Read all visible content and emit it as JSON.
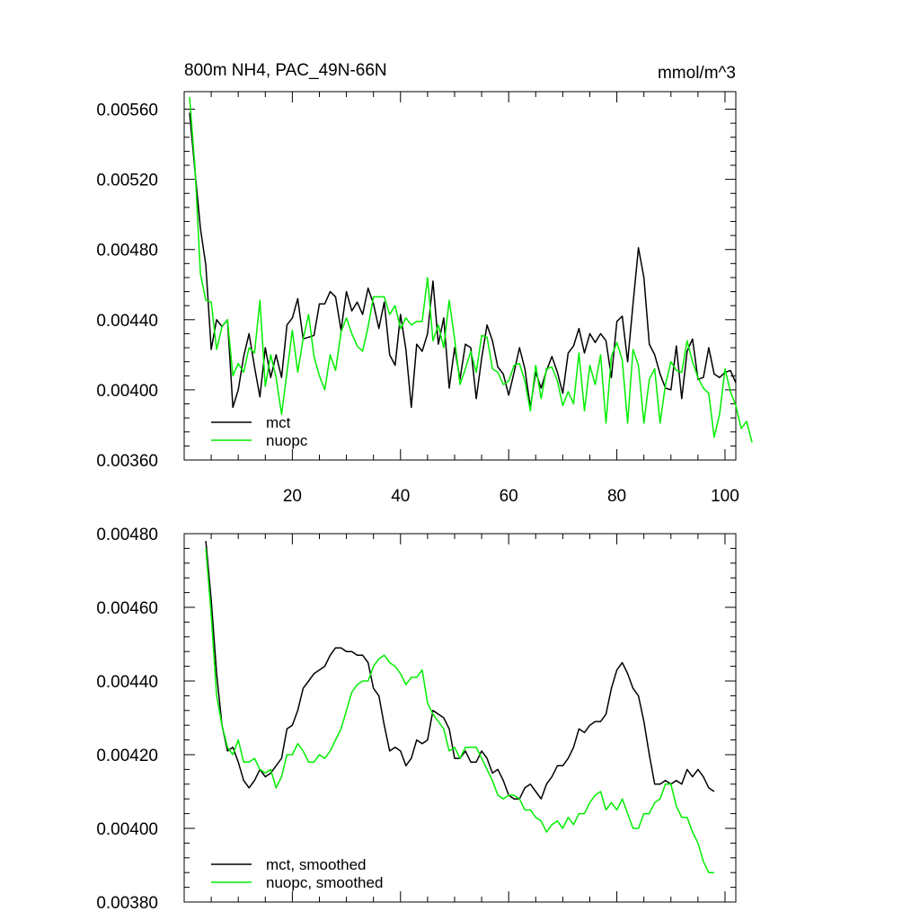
{
  "colors": {
    "mct": "#000000",
    "nuopc": "#00ee00"
  },
  "chart_data": [
    {
      "type": "line",
      "title": "800m NH4, PAC_49N-66N",
      "units": "mmol/m^3",
      "xlim": [
        0,
        102
      ],
      "ylim": [
        0.0036,
        0.0057
      ],
      "x_ticks": [
        20,
        40,
        60,
        80,
        100
      ],
      "x_tick_labels": [
        "20",
        "40",
        "60",
        "80",
        "100"
      ],
      "y_ticks": [
        0.0036,
        0.004,
        0.0044,
        0.0048,
        0.0052,
        0.0056
      ],
      "y_tick_labels": [
        "0.00360",
        "0.00400",
        "0.00440",
        "0.00480",
        "0.00520",
        "0.00560"
      ],
      "legend": [
        "mct",
        "nuopc"
      ],
      "series": [
        {
          "name": "mct",
          "x_start": 1,
          "values": [
            0.00558,
            0.00525,
            0.00492,
            0.00471,
            0.00423,
            0.0044,
            0.00436,
            0.0044,
            0.0039,
            0.004,
            0.00419,
            0.00432,
            0.00413,
            0.00396,
            0.00424,
            0.00407,
            0.0042,
            0.00407,
            0.00437,
            0.00441,
            0.00452,
            0.00429,
            0.0043,
            0.00431,
            0.00449,
            0.00449,
            0.00456,
            0.00453,
            0.00434,
            0.00456,
            0.00445,
            0.0045,
            0.00443,
            0.00458,
            0.00449,
            0.00435,
            0.0045,
            0.0042,
            0.00414,
            0.00443,
            0.00423,
            0.0039,
            0.00426,
            0.00422,
            0.00432,
            0.00462,
            0.00426,
            0.00441,
            0.00401,
            0.00424,
            0.00406,
            0.00426,
            0.00424,
            0.00395,
            0.00418,
            0.00437,
            0.00428,
            0.00413,
            0.00409,
            0.00397,
            0.0041,
            0.00424,
            0.00412,
            0.0039,
            0.0041,
            0.00401,
            0.00411,
            0.00419,
            0.0041,
            0.00398,
            0.00421,
            0.00425,
            0.00435,
            0.00421,
            0.00432,
            0.00427,
            0.00432,
            0.00428,
            0.00407,
            0.00439,
            0.00442,
            0.00416,
            0.00449,
            0.00481,
            0.00464,
            0.00426,
            0.0042,
            0.00409,
            0.00401,
            0.004,
            0.00425,
            0.00395,
            0.00422,
            0.00429,
            0.00406,
            0.00407,
            0.00424,
            0.00409,
            0.00407,
            0.0041,
            0.00411,
            0.00404
          ]
        },
        {
          "name": "nuopc",
          "x_start": 1,
          "values": [
            0.00567,
            0.00527,
            0.00466,
            0.00451,
            0.0045,
            0.00423,
            0.00436,
            0.0044,
            0.00408,
            0.00415,
            0.0041,
            0.00424,
            0.00421,
            0.00451,
            0.00402,
            0.0042,
            0.00407,
            0.00386,
            0.0041,
            0.00434,
            0.0041,
            0.00429,
            0.00443,
            0.00419,
            0.00408,
            0.004,
            0.0042,
            0.00411,
            0.00433,
            0.00441,
            0.00432,
            0.00425,
            0.00422,
            0.00436,
            0.00453,
            0.00453,
            0.00453,
            0.00443,
            0.00448,
            0.00435,
            0.00441,
            0.00437,
            0.00439,
            0.00439,
            0.00464,
            0.00428,
            0.00437,
            0.00424,
            0.00451,
            0.00429,
            0.00403,
            0.00412,
            0.00422,
            0.0041,
            0.00431,
            0.0043,
            0.00412,
            0.0041,
            0.00403,
            0.00405,
            0.00414,
            0.00415,
            0.00405,
            0.00388,
            0.00414,
            0.00395,
            0.00412,
            0.00413,
            0.00405,
            0.00391,
            0.00399,
            0.00392,
            0.00421,
            0.00388,
            0.00414,
            0.00403,
            0.0042,
            0.00381,
            0.00419,
            0.00427,
            0.00417,
            0.00381,
            0.00423,
            0.00414,
            0.00381,
            0.00406,
            0.00412,
            0.00381,
            0.00403,
            0.00416,
            0.00411,
            0.0041,
            0.00428,
            0.00416,
            0.00407,
            0.00401,
            0.00398,
            0.00373,
            0.00386,
            0.00412,
            0.00399,
            0.00391,
            0.00378,
            0.00382,
            0.0037
          ]
        }
      ]
    },
    {
      "type": "line",
      "title": "",
      "units": "",
      "xlim": [
        0,
        102
      ],
      "ylim": [
        0.0038,
        0.0048
      ],
      "x_ticks": [
        20,
        40,
        60,
        80,
        100
      ],
      "x_tick_labels": [],
      "y_ticks": [
        0.0038,
        0.004,
        0.0042,
        0.0044,
        0.0046,
        0.0048
      ],
      "y_tick_labels": [
        "0.00380",
        "0.00400",
        "0.00420",
        "0.00440",
        "0.00460",
        "0.00480"
      ],
      "legend": [
        "mct, smoothed",
        "nuopc, smoothed"
      ],
      "series": [
        {
          "name": "mct, smoothed",
          "x_start": 4,
          "values": [
            0.00478,
            0.00462,
            0.00442,
            0.00428,
            0.00421,
            0.00422,
            0.00418,
            0.00413,
            0.00411,
            0.00413,
            0.00416,
            0.00414,
            0.00415,
            0.00417,
            0.00419,
            0.00427,
            0.00428,
            0.00432,
            0.00438,
            0.0044,
            0.00442,
            0.00443,
            0.00444,
            0.00447,
            0.00449,
            0.00449,
            0.00448,
            0.00448,
            0.00447,
            0.00447,
            0.00445,
            0.00438,
            0.00436,
            0.00428,
            0.00421,
            0.00422,
            0.00421,
            0.00417,
            0.00419,
            0.00424,
            0.00423,
            0.00424,
            0.00432,
            0.00431,
            0.0043,
            0.00427,
            0.00419,
            0.00419,
            0.00421,
            0.00418,
            0.00418,
            0.00421,
            0.00419,
            0.00415,
            0.00416,
            0.00413,
            0.00409,
            0.00408,
            0.00408,
            0.00411,
            0.00412,
            0.0041,
            0.00408,
            0.00412,
            0.00414,
            0.00417,
            0.00417,
            0.00419,
            0.00422,
            0.00427,
            0.00426,
            0.00428,
            0.00429,
            0.00429,
            0.00431,
            0.00438,
            0.00443,
            0.00445,
            0.00442,
            0.00438,
            0.00436,
            0.00429,
            0.0042,
            0.00412,
            0.00412,
            0.00413,
            0.00412,
            0.00413,
            0.00412,
            0.00416,
            0.00414,
            0.00416,
            0.00414,
            0.00411,
            0.0041
          ]
        },
        {
          "name": "nuopc, smoothed",
          "x_start": 4,
          "values": [
            0.00476,
            0.00458,
            0.00436,
            0.00428,
            0.00422,
            0.0042,
            0.00424,
            0.00418,
            0.00418,
            0.00419,
            0.00416,
            0.00415,
            0.00416,
            0.00411,
            0.00414,
            0.0042,
            0.0042,
            0.00423,
            0.00421,
            0.00418,
            0.00418,
            0.0042,
            0.00419,
            0.00421,
            0.00424,
            0.00427,
            0.00432,
            0.00437,
            0.00439,
            0.0044,
            0.0044,
            0.00444,
            0.00446,
            0.00447,
            0.00445,
            0.00444,
            0.00442,
            0.00439,
            0.00441,
            0.00441,
            0.00443,
            0.00434,
            0.00431,
            0.00429,
            0.00427,
            0.00421,
            0.00422,
            0.00419,
            0.00422,
            0.00422,
            0.00422,
            0.00419,
            0.00416,
            0.00413,
            0.00409,
            0.00408,
            0.00409,
            0.00409,
            0.00408,
            0.00405,
            0.00405,
            0.00403,
            0.00402,
            0.00399,
            0.00401,
            0.00402,
            0.004,
            0.00403,
            0.00401,
            0.00404,
            0.00404,
            0.00407,
            0.00409,
            0.0041,
            0.00405,
            0.00407,
            0.00405,
            0.00408,
            0.00404,
            0.004,
            0.004,
            0.00404,
            0.00404,
            0.00407,
            0.00408,
            0.00412,
            0.00412,
            0.00406,
            0.00403,
            0.00403,
            0.00399,
            0.00396,
            0.00391,
            0.00388,
            0.00388
          ]
        }
      ]
    }
  ]
}
